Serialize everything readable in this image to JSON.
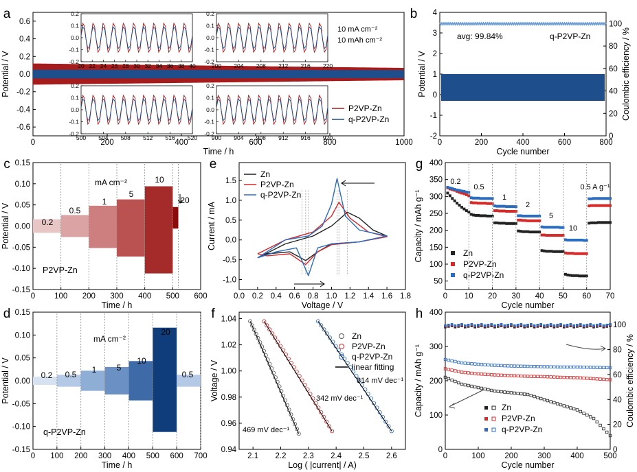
{
  "chart_data": [
    {
      "id": "a",
      "panel": "a",
      "type": "line",
      "xlabel": "Time / h",
      "ylabel": "Potential / V",
      "xlim": [
        0,
        1000
      ],
      "ylim": [
        -0.7,
        0.7
      ],
      "xticks": [
        0,
        200,
        400,
        600,
        800,
        1000
      ],
      "yticks": [
        -0.6,
        -0.4,
        -0.2,
        0.0,
        0.2,
        0.4,
        0.6
      ],
      "annotations": [
        "10 mA cm⁻²",
        "10 mAh cm⁻²"
      ],
      "series": [
        {
          "name": "P2VP-Zn",
          "color": "#a61b1b",
          "amplitude": [
            0.12,
            0.07
          ]
        },
        {
          "name": "q-P2VP-Zn",
          "color": "#1f4e8c",
          "amplitude": [
            0.05,
            0.045
          ]
        }
      ],
      "insets": [
        {
          "xlim": [
            20,
            40
          ],
          "xticks": [
            20,
            22,
            24,
            26,
            28,
            30,
            32,
            34,
            36,
            38,
            40
          ],
          "ylim": [
            -0.2,
            0.2
          ],
          "yticks": [
            -0.2,
            -0.1,
            0.0,
            0.1,
            0.2
          ]
        },
        {
          "xlim": [
            200,
            220
          ],
          "xticks": [
            200,
            204,
            208,
            212,
            216,
            220
          ],
          "ylim": [
            -0.2,
            0.2
          ],
          "yticks": [
            -0.2,
            -0.1,
            0.0,
            0.1,
            0.2
          ]
        },
        {
          "xlim": [
            500,
            520
          ],
          "xticks": [
            500,
            504,
            508,
            512,
            516,
            520
          ],
          "ylim": [
            -0.2,
            0.2
          ],
          "yticks": [
            -0.2,
            -0.1,
            0.0,
            0.1,
            0.2
          ]
        },
        {
          "xlim": [
            900,
            920
          ],
          "xticks": [
            900,
            904,
            908,
            912,
            916,
            920
          ],
          "ylim": [
            -0.2,
            0.2
          ],
          "yticks": [
            -0.2,
            -0.1,
            0.0,
            0.1,
            0.2
          ]
        }
      ]
    },
    {
      "id": "b",
      "panel": "b",
      "type": "line",
      "xlabel": "Cycle number",
      "ylabel": "Potential / V",
      "y2label": "Coulombic efficiency / %",
      "xlim": [
        0,
        800
      ],
      "ylim": [
        -2,
        4
      ],
      "y2lim": [
        0,
        110
      ],
      "xticks": [
        0,
        200,
        400,
        600,
        800
      ],
      "yticks": [
        -2,
        -1,
        0,
        1,
        2,
        3,
        4
      ],
      "y2ticks": [
        0,
        20,
        40,
        60,
        80,
        100
      ],
      "annotations": [
        "avg: 99.84%",
        "q-P2VP-Zn"
      ],
      "series": [
        {
          "name": "potential",
          "color": "#1f4e8c",
          "band": [
            -0.3,
            1.0
          ]
        },
        {
          "name": "Coulombic efficiency",
          "color": "#6d9fd6",
          "value": 99.84
        }
      ]
    },
    {
      "id": "c",
      "panel": "c",
      "type": "area",
      "xlabel": "Time / h",
      "ylabel": "Potential / V",
      "xlim": [
        0,
        600
      ],
      "ylim": [
        -0.15,
        0.15
      ],
      "xticks": [
        0,
        100,
        200,
        300,
        400,
        500,
        600
      ],
      "yticks": [
        -0.15,
        -0.1,
        -0.05,
        0.0,
        0.05,
        0.1,
        0.15
      ],
      "annotations": [
        "mA cm⁻²",
        "P2VP-Zn"
      ],
      "segments": [
        {
          "label": "0.2",
          "x": [
            0,
            100
          ],
          "top": 0.016,
          "bottom": -0.016,
          "color": "#e9c6c6"
        },
        {
          "label": "0.5",
          "x": [
            100,
            200
          ],
          "top": 0.026,
          "bottom": -0.026,
          "color": "#dba3a3"
        },
        {
          "label": "1",
          "x": [
            200,
            300
          ],
          "top": 0.048,
          "bottom": -0.052,
          "color": "#cd7e7e"
        },
        {
          "label": "5",
          "x": [
            300,
            400
          ],
          "top": 0.063,
          "bottom": -0.072,
          "color": "#bb5252"
        },
        {
          "label": "10",
          "x": [
            400,
            500
          ],
          "top": 0.094,
          "bottom": -0.112,
          "color": "#a52a2a"
        },
        {
          "label": "20",
          "x": [
            500,
            520
          ],
          "top": 0.045,
          "bottom": -0.006,
          "color": "#8b0a0a"
        }
      ]
    },
    {
      "id": "d",
      "panel": "d",
      "type": "area",
      "xlabel": "Time / h",
      "ylabel": "Potential / V",
      "xlim": [
        0,
        700
      ],
      "ylim": [
        -0.15,
        0.15
      ],
      "xticks": [
        0,
        100,
        200,
        300,
        400,
        500,
        600,
        700
      ],
      "yticks": [
        -0.15,
        -0.1,
        -0.05,
        0.0,
        0.05,
        0.1,
        0.15
      ],
      "annotations": [
        "mA cm⁻²",
        "q-P2VP-Zn"
      ],
      "segments": [
        {
          "label": "0.2",
          "x": [
            0,
            100
          ],
          "top": 0.009,
          "bottom": -0.009,
          "color": "#d6e2f1"
        },
        {
          "label": "0.5",
          "x": [
            100,
            200
          ],
          "top": 0.013,
          "bottom": -0.013,
          "color": "#b4c9e5"
        },
        {
          "label": "1",
          "x": [
            200,
            300
          ],
          "top": 0.022,
          "bottom": -0.022,
          "color": "#8eaed6"
        },
        {
          "label": "5",
          "x": [
            300,
            400
          ],
          "top": 0.03,
          "bottom": -0.03,
          "color": "#6b91c4"
        },
        {
          "label": "10",
          "x": [
            400,
            500
          ],
          "top": 0.043,
          "bottom": -0.043,
          "color": "#3f6aa8"
        },
        {
          "label": "20",
          "x": [
            500,
            600
          ],
          "top": 0.116,
          "bottom": -0.112,
          "color": "#0f3c7a"
        },
        {
          "label": "0.5",
          "x": [
            600,
            700
          ],
          "top": 0.013,
          "bottom": -0.013,
          "color": "#b4c9e5"
        }
      ]
    },
    {
      "id": "e",
      "panel": "e",
      "type": "line",
      "xlabel": "Voltage / V",
      "ylabel": "Current / mA",
      "xlim": [
        0.0,
        1.8
      ],
      "ylim": [
        -1.25,
        1.95
      ],
      "xticks": [
        0.0,
        0.2,
        0.4,
        0.6,
        0.8,
        1.0,
        1.2,
        1.4,
        1.6,
        1.8
      ],
      "yticks": [
        -1.0,
        -0.5,
        0.0,
        0.5,
        1.0,
        1.5
      ],
      "series": [
        {
          "name": "Zn",
          "color": "#222222",
          "upper": [
            [
              0.2,
              -0.45
            ],
            [
              0.5,
              -0.1
            ],
            [
              0.8,
              0.1
            ],
            [
              1.0,
              0.35
            ],
            [
              1.1,
              0.55
            ],
            [
              1.17,
              0.7
            ],
            [
              1.3,
              0.55
            ],
            [
              1.45,
              0.25
            ],
            [
              1.6,
              0.1
            ]
          ],
          "lower": [
            [
              1.6,
              0.1
            ],
            [
              1.3,
              -0.05
            ],
            [
              1.0,
              -0.1
            ],
            [
              0.85,
              -0.3
            ],
            [
              0.72,
              -0.52
            ],
            [
              0.55,
              -0.3
            ],
            [
              0.3,
              -0.35
            ],
            [
              0.2,
              -0.45
            ]
          ]
        },
        {
          "name": "P2VP-Zn",
          "color": "#d42a2a",
          "upper": [
            [
              0.2,
              -0.35
            ],
            [
              0.5,
              0.0
            ],
            [
              0.8,
              0.2
            ],
            [
              1.0,
              0.6
            ],
            [
              1.08,
              0.95
            ],
            [
              1.2,
              0.55
            ],
            [
              1.4,
              0.2
            ],
            [
              1.6,
              0.08
            ]
          ],
          "lower": [
            [
              1.6,
              0.08
            ],
            [
              1.3,
              -0.05
            ],
            [
              1.0,
              -0.12
            ],
            [
              0.85,
              -0.3
            ],
            [
              0.72,
              -0.62
            ],
            [
              0.55,
              -0.35
            ],
            [
              0.3,
              -0.4
            ],
            [
              0.2,
              -0.35
            ]
          ]
        },
        {
          "name": "q-P2VP-Zn",
          "color": "#2a6cc0",
          "upper": [
            [
              0.2,
              -0.45
            ],
            [
              0.5,
              0.0
            ],
            [
              0.75,
              0.1
            ],
            [
              0.9,
              0.35
            ],
            [
              1.0,
              0.9
            ],
            [
              1.06,
              1.55
            ],
            [
              1.15,
              0.6
            ],
            [
              1.3,
              0.25
            ],
            [
              1.6,
              0.1
            ]
          ],
          "lower": [
            [
              1.6,
              0.1
            ],
            [
              1.3,
              -0.05
            ],
            [
              1.0,
              -0.1
            ],
            [
              0.85,
              -0.2
            ],
            [
              0.75,
              -0.9
            ],
            [
              0.62,
              -0.2
            ],
            [
              0.4,
              -0.3
            ],
            [
              0.2,
              -0.45
            ]
          ]
        }
      ],
      "reference_lines_x": [
        0.68,
        0.72,
        0.75,
        1.06,
        1.08,
        1.17
      ]
    },
    {
      "id": "f",
      "panel": "f",
      "type": "scatter",
      "xlabel": "Log ( |current| / A)",
      "ylabel": "Voltage / V",
      "xlim": [
        2.05,
        2.65
      ],
      "ylim": [
        0.94,
        1.045
      ],
      "xticks": [
        2.1,
        2.2,
        2.3,
        2.4,
        2.5,
        2.6
      ],
      "yticks": [
        0.94,
        0.96,
        0.98,
        1.0,
        1.02,
        1.04
      ],
      "annotations": [
        "469 mV dec⁻¹",
        "342 mV dec⁻¹",
        "314 mV dec⁻¹"
      ],
      "series": [
        {
          "name": "Zn",
          "color": "#555555",
          "x": [
            2.09,
            2.265
          ],
          "y": [
            1.038,
            0.952
          ]
        },
        {
          "name": "P2VP-Zn",
          "color": "#d42a2a",
          "x": [
            2.14,
            2.385
          ],
          "y": [
            1.038,
            0.954
          ]
        },
        {
          "name": "q-P2VP-Zn",
          "color": "#2a6cc0",
          "x": [
            2.335,
            2.6
          ],
          "y": [
            1.038,
            0.954
          ]
        },
        {
          "name": "linear fitting",
          "color": "#000000"
        }
      ]
    },
    {
      "id": "g",
      "panel": "g",
      "type": "scatter",
      "xlabel": "Cycle number",
      "ylabel": "Capacity / mAh g⁻¹",
      "xlim": [
        0,
        70
      ],
      "ylim": [
        25,
        400
      ],
      "xticks": [
        0,
        10,
        20,
        30,
        40,
        50,
        60,
        70
      ],
      "yticks": [
        50,
        100,
        150,
        200,
        250,
        300,
        350,
        400
      ],
      "rates": [
        "0.2",
        "0.5",
        "1",
        "2",
        "5",
        "10",
        "0.5 A g⁻¹"
      ],
      "series": [
        {
          "name": "Zn",
          "color": "#222222",
          "values": [
            310,
            302,
            294,
            287,
            280,
            274,
            268,
            263,
            258,
            254,
            247,
            245,
            244,
            244,
            243,
            243,
            243,
            242,
            242,
            242,
            222,
            222,
            221,
            221,
            221,
            220,
            220,
            220,
            220,
            220,
            198,
            197,
            196,
            196,
            196,
            195,
            195,
            195,
            195,
            195,
            140,
            139,
            138,
            138,
            138,
            137,
            137,
            137,
            137,
            137,
            70,
            68,
            67,
            66,
            66,
            66,
            65,
            65,
            65,
            65,
            221,
            222,
            222,
            222,
            223,
            223,
            223,
            223,
            223,
            223
          ]
        },
        {
          "name": "P2VP-Zn",
          "color": "#d42a2a",
          "values": [
            325,
            322,
            320,
            318,
            315,
            312,
            310,
            308,
            305,
            302,
            282,
            281,
            281,
            280,
            280,
            280,
            280,
            279,
            279,
            279,
            258,
            258,
            257,
            257,
            257,
            256,
            256,
            256,
            256,
            256,
            230,
            230,
            229,
            229,
            228,
            228,
            228,
            228,
            228,
            228,
            186,
            186,
            185,
            185,
            185,
            185,
            185,
            185,
            185,
            185,
            133,
            132,
            132,
            132,
            131,
            131,
            131,
            131,
            131,
            131,
            272,
            273,
            273,
            273,
            273,
            273,
            273,
            273,
            273,
            273
          ]
        },
        {
          "name": "q-P2VP-Zn",
          "color": "#2a6cc0",
          "values": [
            327,
            325,
            323,
            321,
            319,
            318,
            316,
            315,
            313,
            312,
            296,
            295,
            295,
            295,
            294,
            294,
            294,
            294,
            294,
            294,
            272,
            271,
            271,
            271,
            271,
            270,
            270,
            270,
            270,
            270,
            243,
            243,
            242,
            242,
            242,
            242,
            242,
            242,
            242,
            242,
            210,
            209,
            209,
            209,
            209,
            209,
            209,
            209,
            208,
            208,
            172,
            171,
            171,
            171,
            171,
            171,
            171,
            171,
            170,
            170,
            293,
            293,
            294,
            294,
            294,
            294,
            294,
            294,
            294,
            294
          ]
        }
      ]
    },
    {
      "id": "h",
      "panel": "h",
      "type": "scatter",
      "xlabel": "Cycle number",
      "ylabel": "Capacity / mAh g⁻¹",
      "y2label": "Coulombic efficiency / %",
      "xlim": [
        0,
        500
      ],
      "ylim": [
        0,
        400
      ],
      "y2lim": [
        0,
        110
      ],
      "xticks": [
        0,
        100,
        200,
        300,
        400,
        500
      ],
      "yticks": [
        0,
        100,
        200,
        300,
        400
      ],
      "y2ticks": [
        0,
        20,
        40,
        60,
        80,
        100
      ],
      "series": [
        {
          "name": "Zn",
          "color": "#222222",
          "capacity_x": [
            0,
            50,
            100,
            150,
            200,
            250,
            300,
            350,
            400,
            450,
            500
          ],
          "capacity": [
            210,
            190,
            180,
            170,
            165,
            160,
            145,
            130,
            115,
            90,
            40
          ],
          "efficiency": 98.5
        },
        {
          "name": "P2VP-Zn",
          "color": "#d42a2a",
          "capacity_x": [
            0,
            50,
            100,
            150,
            200,
            250,
            300,
            350,
            400,
            450,
            500
          ],
          "capacity": [
            235,
            225,
            220,
            217,
            215,
            213,
            212,
            210,
            209,
            206,
            203
          ],
          "efficiency": 99.3
        },
        {
          "name": "q-P2VP-Zn",
          "color": "#2a6cc0",
          "capacity_x": [
            0,
            50,
            100,
            150,
            200,
            250,
            300,
            350,
            400,
            450,
            500
          ],
          "capacity": [
            262,
            252,
            248,
            245,
            243,
            242,
            241,
            240,
            240,
            239,
            238
          ],
          "efficiency": 99.7
        }
      ]
    }
  ]
}
